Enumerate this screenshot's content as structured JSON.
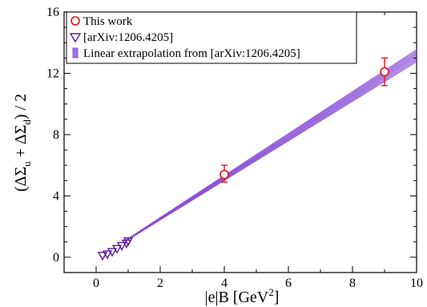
{
  "chart_data": {
    "type": "scatter",
    "xlim": [
      -1,
      10
    ],
    "ylim": [
      -1,
      16
    ],
    "x_ticks": [
      0,
      2,
      4,
      6,
      8,
      10
    ],
    "y_ticks": [
      0,
      4,
      8,
      12,
      16
    ],
    "xlabel": "|e|B [GeV",
    "xlabel_sup": "2",
    "xlabel_end": "]",
    "ylabel_prefix": "(ΔΣ",
    "ylabel_sub1": "u",
    "ylabel_mid": " + ΔΣ",
    "ylabel_sub2": "d",
    "ylabel_suffix": ") / 2",
    "grid": false,
    "legend_position": "top-left",
    "series": [
      {
        "name": "This work",
        "marker": "circle",
        "color": "#e8131a",
        "points": [
          {
            "x": 4,
            "y": 5.4,
            "yerr_low": 4.9,
            "yerr_high": 6.0
          },
          {
            "x": 9,
            "y": 12.1,
            "yerr_low": 11.2,
            "yerr_high": 13.0
          }
        ]
      },
      {
        "name": "[arXiv:1206.4205]",
        "marker": "triangle-down",
        "color": "#5a1a9c",
        "points": [
          {
            "x": 0.2,
            "y": 0.1
          },
          {
            "x": 0.35,
            "y": 0.2
          },
          {
            "x": 0.5,
            "y": 0.35
          },
          {
            "x": 0.65,
            "y": 0.55
          },
          {
            "x": 0.8,
            "y": 0.75
          },
          {
            "x": 0.95,
            "y": 0.9
          },
          {
            "x": 1.0,
            "y": 1.05
          }
        ]
      },
      {
        "name": "Linear extrapolation from [arXiv:1206.4205]",
        "type": "band",
        "color": "#8a4fd6",
        "x_range": [
          0.9,
          10
        ],
        "lower_slope": 1.29,
        "upper_slope": 1.37,
        "intercept": -0.15
      }
    ]
  }
}
